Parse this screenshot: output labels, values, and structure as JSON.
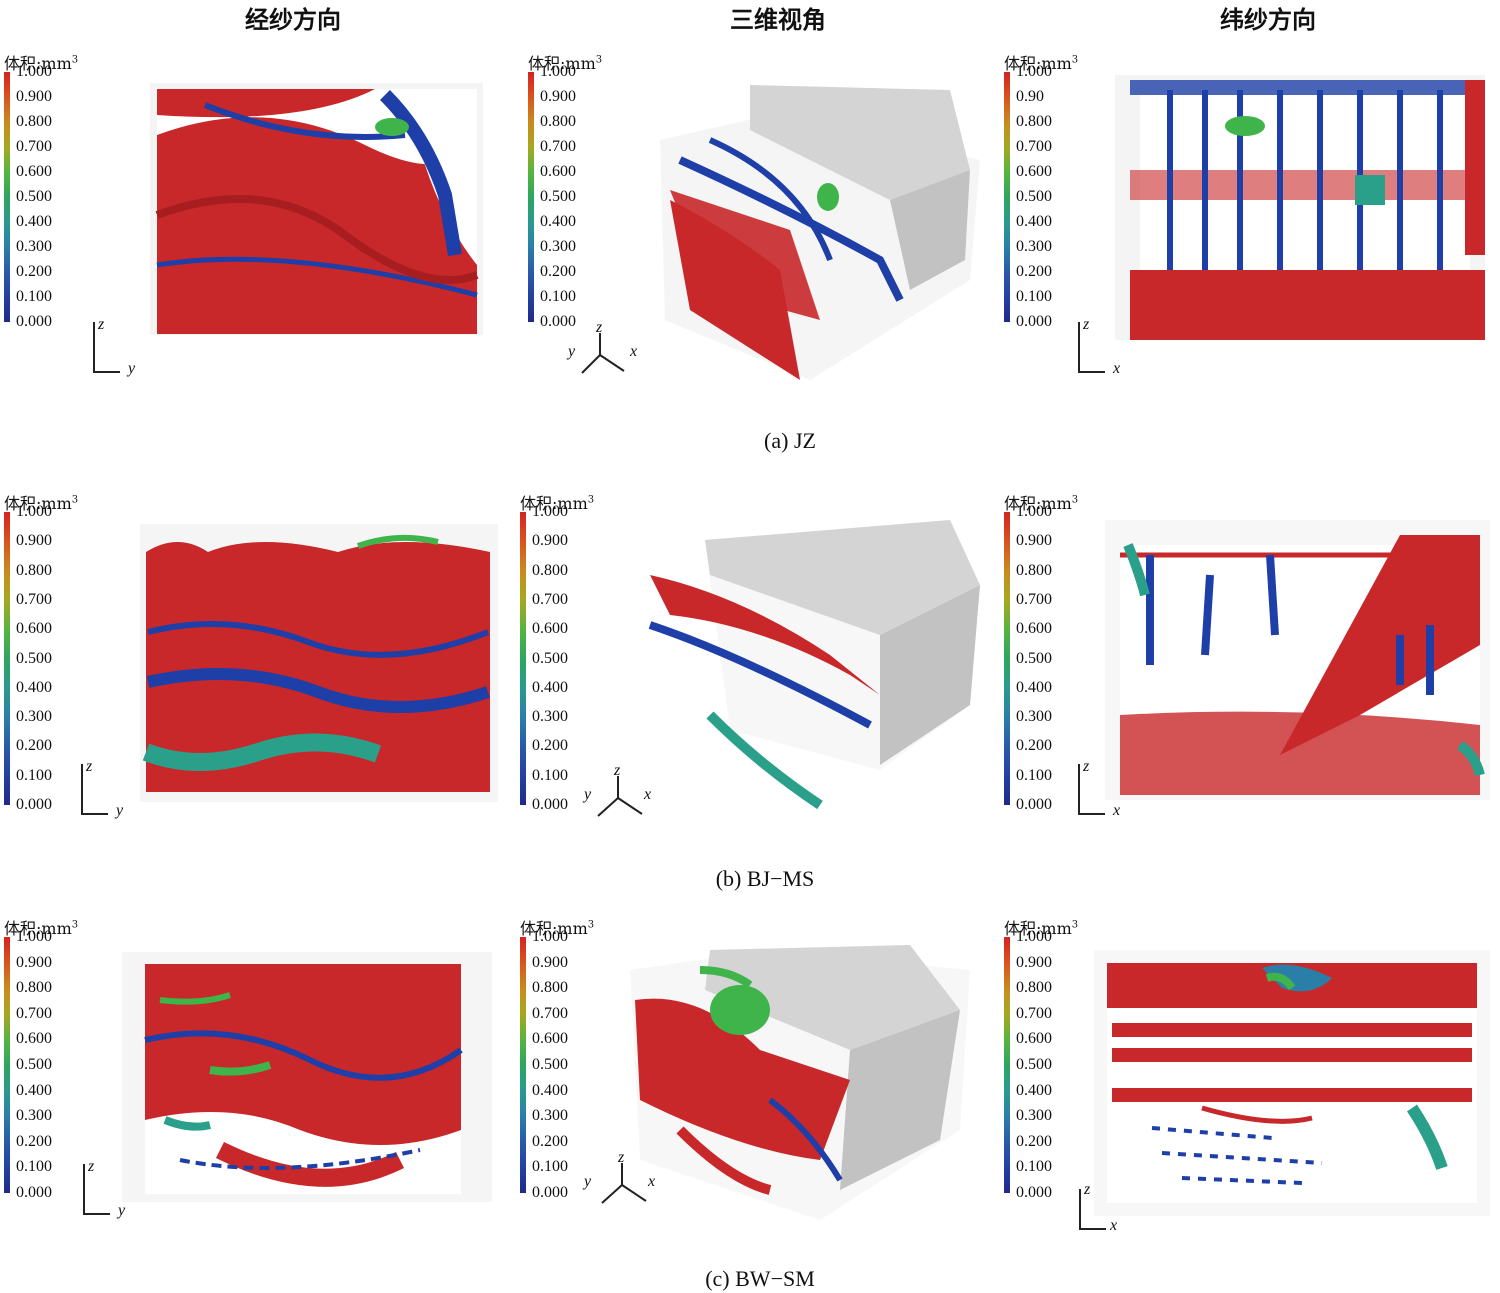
{
  "columns": [
    "经纱方向",
    "三维视角",
    "纬纱方向"
  ],
  "captions": [
    "(a) JZ",
    "(b) BJ−MS",
    "(c) BW−SM"
  ],
  "colorbar": {
    "title": "体积:mm",
    "unit_sup": "3",
    "ticks_3dec": [
      "1.000",
      "0.900",
      "0.800",
      "0.700",
      "0.600",
      "0.500",
      "0.400",
      "0.300",
      "0.200",
      "0.100",
      "0.000"
    ],
    "ticks_rowa_right": [
      "1.000",
      "0.90",
      "0.800",
      "0.700",
      "0.600",
      "0.500",
      "0.400",
      "0.300",
      "0.200",
      "0.100",
      "0.000"
    ]
  },
  "axes": {
    "z": "z",
    "y": "y",
    "x": "x"
  },
  "colors": {
    "red": "#c8282a",
    "blue": "#1e3ea8",
    "green": "#3fb44a",
    "teal": "#2aa08a",
    "gray": "#c9c9c9"
  }
}
